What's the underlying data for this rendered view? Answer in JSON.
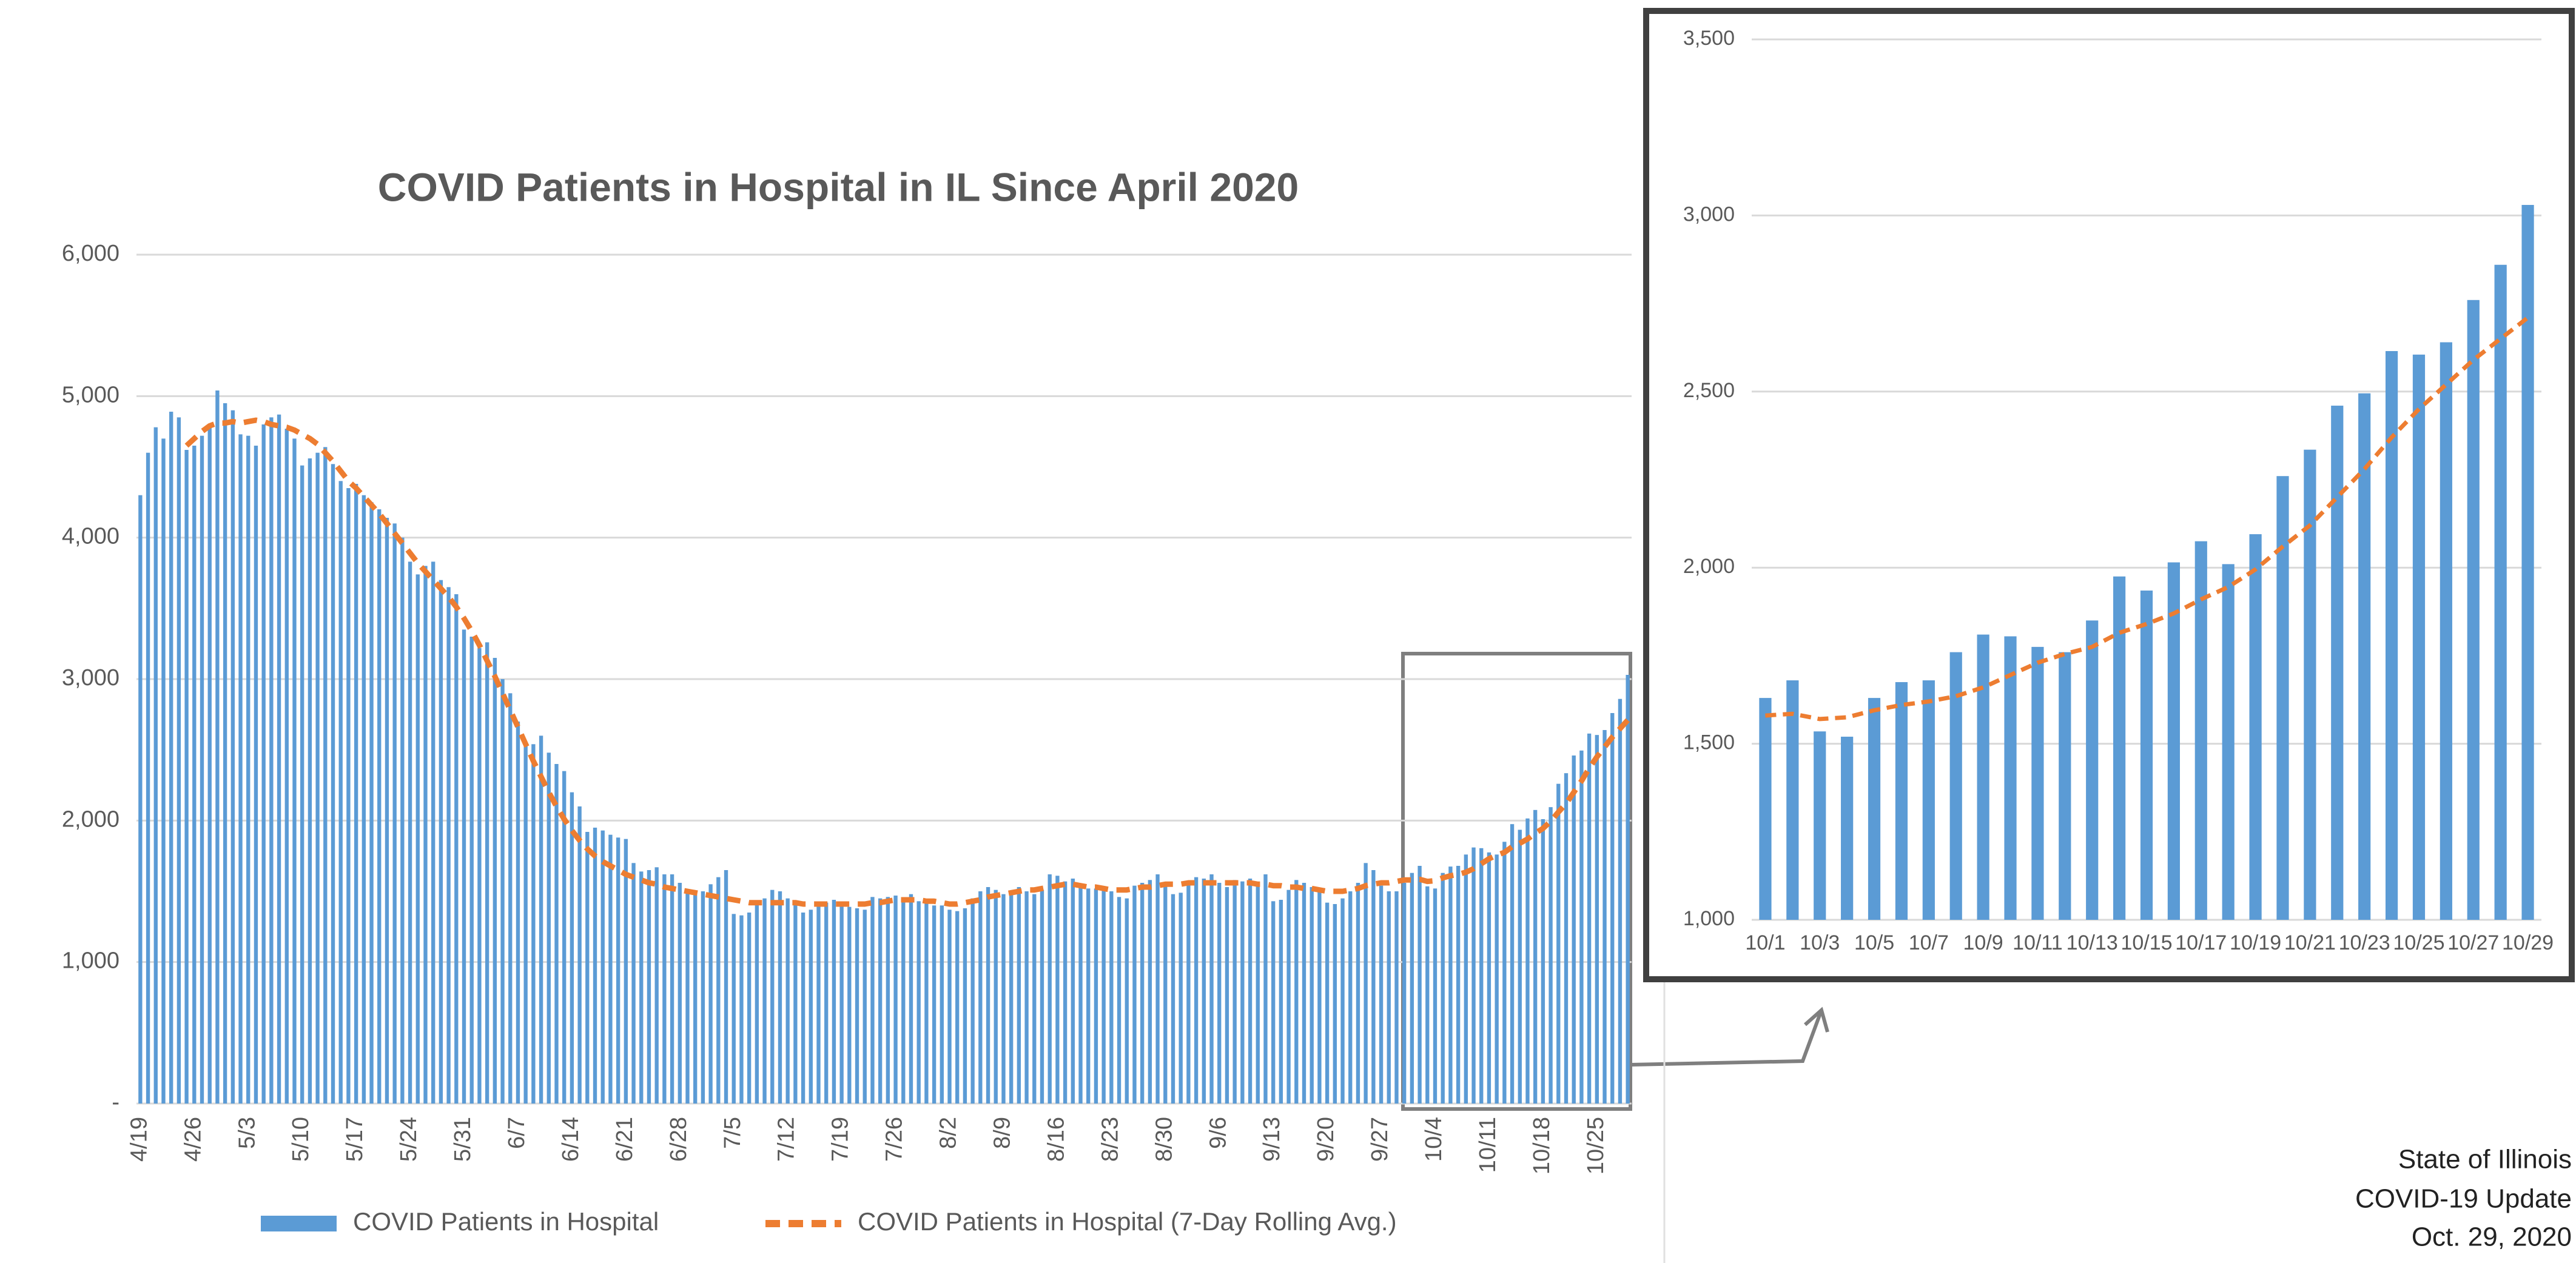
{
  "chart_data": [
    {
      "type": "bar",
      "title": "COVID Patients in Hospital in IL Since April 2020",
      "categories": [
        "4/19",
        null,
        null,
        null,
        null,
        null,
        null,
        "4/26",
        null,
        null,
        null,
        null,
        null,
        null,
        "5/3",
        null,
        null,
        null,
        null,
        null,
        null,
        "5/10",
        null,
        null,
        null,
        null,
        null,
        null,
        "5/17",
        null,
        null,
        null,
        null,
        null,
        null,
        "5/24",
        null,
        null,
        null,
        null,
        null,
        null,
        "5/31",
        null,
        null,
        null,
        null,
        null,
        null,
        "6/7",
        null,
        null,
        null,
        null,
        null,
        null,
        "6/14",
        null,
        null,
        null,
        null,
        null,
        null,
        "6/21",
        null,
        null,
        null,
        null,
        null,
        null,
        "6/28",
        null,
        null,
        null,
        null,
        null,
        null,
        "7/5",
        null,
        null,
        null,
        null,
        null,
        null,
        "7/12",
        null,
        null,
        null,
        null,
        null,
        null,
        "7/19",
        null,
        null,
        null,
        null,
        null,
        null,
        "7/26",
        null,
        null,
        null,
        null,
        null,
        null,
        "8/2",
        null,
        null,
        null,
        null,
        null,
        null,
        "8/9",
        null,
        null,
        null,
        null,
        null,
        null,
        "8/16",
        null,
        null,
        null,
        null,
        null,
        null,
        "8/23",
        null,
        null,
        null,
        null,
        null,
        null,
        "8/30",
        null,
        null,
        null,
        null,
        null,
        null,
        "9/6",
        null,
        null,
        null,
        null,
        null,
        null,
        "9/13",
        null,
        null,
        null,
        null,
        null,
        null,
        "9/20",
        null,
        null,
        null,
        null,
        null,
        null,
        "9/27",
        null,
        null,
        null,
        null,
        null,
        null,
        "10/4",
        null,
        null,
        null,
        null,
        null,
        null,
        "10/11",
        null,
        null,
        null,
        null,
        null,
        null,
        "10/18",
        null,
        null,
        null,
        null,
        null,
        null,
        "10/25",
        null,
        null,
        null,
        null
      ],
      "series": [
        {
          "name": "COVID Patients in Hospital",
          "color": "#5b9bd5",
          "type": "bar",
          "values": [
            4300,
            4600,
            4780,
            4700,
            4890,
            4850,
            4620,
            4650,
            4720,
            4800,
            5040,
            4950,
            4900,
            4730,
            4720,
            4650,
            4800,
            4850,
            4870,
            4770,
            4700,
            4510,
            4560,
            4600,
            4640,
            4520,
            4400,
            4350,
            4380,
            4300,
            4250,
            4200,
            4140,
            4100,
            4000,
            3830,
            3740,
            3800,
            3830,
            3700,
            3650,
            3600,
            3350,
            3300,
            3220,
            3260,
            3150,
            3000,
            2900,
            2700,
            2550,
            2540,
            2600,
            2480,
            2400,
            2350,
            2200,
            2100,
            1920,
            1950,
            1930,
            1900,
            1880,
            1870,
            1700,
            1640,
            1650,
            1670,
            1620,
            1620,
            1560,
            1500,
            1480,
            1500,
            1550,
            1600,
            1650,
            1340,
            1330,
            1350,
            1420,
            1450,
            1510,
            1500,
            1450,
            1420,
            1350,
            1370,
            1400,
            1420,
            1440,
            1400,
            1390,
            1380,
            1370,
            1460,
            1450,
            1460,
            1470,
            1450,
            1480,
            1430,
            1420,
            1400,
            1400,
            1370,
            1360,
            1380,
            1450,
            1500,
            1530,
            1510,
            1480,
            1490,
            1530,
            1500,
            1480,
            1510,
            1620,
            1610,
            1570,
            1590,
            1530,
            1520,
            1520,
            1510,
            1500,
            1460,
            1450,
            1540,
            1560,
            1580,
            1620,
            1550,
            1480,
            1490,
            1550,
            1600,
            1590,
            1620,
            1560,
            1530,
            1580,
            1570,
            1590,
            1560,
            1620,
            1430,
            1440,
            1510,
            1580,
            1560,
            1530,
            1520,
            1420,
            1410,
            1450,
            1500,
            1560,
            1700,
            1650,
            1540,
            1500,
            1500,
            1560,
            1630,
            1680,
            1535,
            1520,
            1630,
            1675,
            1680,
            1760,
            1810,
            1805,
            1775,
            1760,
            1850,
            1975,
            1935,
            2015,
            2075,
            2010,
            2095,
            2260,
            2335,
            2460,
            2495,
            2615,
            2605,
            2640,
            2760,
            2860,
            3030
          ]
        },
        {
          "name": "COVID Patients in Hospital (7-Day Rolling Avg.)",
          "color": "#ed7d31",
          "type": "line",
          "values": [
            null,
            null,
            null,
            null,
            null,
            null,
            4650,
            4700,
            4750,
            4790,
            4810,
            4810,
            4820,
            4810,
            4820,
            4830,
            4820,
            4800,
            4790,
            4780,
            4760,
            4730,
            4700,
            4660,
            4600,
            4540,
            4470,
            4400,
            4350,
            4290,
            4230,
            4170,
            4100,
            4030,
            3960,
            3890,
            3820,
            3760,
            3700,
            3640,
            3580,
            3510,
            3430,
            3340,
            3240,
            3130,
            3020,
            2900,
            2780,
            2660,
            2540,
            2420,
            2310,
            2200,
            2100,
            2010,
            1930,
            1860,
            1800,
            1750,
            1710,
            1680,
            1650,
            1620,
            1600,
            1580,
            1560,
            1550,
            1530,
            1520,
            1510,
            1500,
            1490,
            1480,
            1470,
            1460,
            1450,
            1440,
            1430,
            1420,
            1420,
            1420,
            1420,
            1420,
            1420,
            1420,
            1410,
            1410,
            1410,
            1410,
            1410,
            1410,
            1410,
            1410,
            1410,
            1420,
            1420,
            1430,
            1440,
            1440,
            1440,
            1440,
            1430,
            1430,
            1420,
            1410,
            1410,
            1420,
            1430,
            1440,
            1460,
            1470,
            1480,
            1490,
            1500,
            1510,
            1510,
            1520,
            1530,
            1540,
            1550,
            1550,
            1540,
            1530,
            1530,
            1520,
            1510,
            1510,
            1510,
            1520,
            1530,
            1530,
            1540,
            1550,
            1550,
            1550,
            1560,
            1560,
            1560,
            1560,
            1560,
            1560,
            1560,
            1560,
            1560,
            1550,
            1550,
            1540,
            1540,
            1530,
            1530,
            1520,
            1520,
            1510,
            1500,
            1500,
            1500,
            1510,
            1520,
            1540,
            1550,
            1560,
            1560,
            1570,
            1580,
            1580,
            1585,
            1570,
            1575,
            1595,
            1610,
            1620,
            1635,
            1660,
            1695,
            1730,
            1755,
            1775,
            1815,
            1840,
            1870,
            1910,
            1945,
            1995,
            2060,
            2120,
            2200,
            2280,
            2370,
            2450,
            2520,
            2590,
            2650,
            2710
          ]
        }
      ],
      "ylim": [
        0,
        6000
      ],
      "yticks": [
        {
          "value": 0,
          "label": "-"
        },
        {
          "value": 1000,
          "label": "1,000"
        },
        {
          "value": 2000,
          "label": "2,000"
        },
        {
          "value": 3000,
          "label": "3,000"
        },
        {
          "value": 4000,
          "label": "4,000"
        },
        {
          "value": 5000,
          "label": "5,000"
        },
        {
          "value": 6000,
          "label": "6,000"
        }
      ],
      "grid": true,
      "legend": "bottom",
      "x_label_rotation": -90
    },
    {
      "type": "bar",
      "categories": [
        "10/1",
        null,
        "10/3",
        null,
        "10/5",
        null,
        "10/7",
        null,
        "10/9",
        null,
        "10/11",
        null,
        "10/13",
        null,
        "10/15",
        null,
        "10/17",
        null,
        "10/19",
        null,
        "10/21",
        null,
        "10/23",
        null,
        "10/25",
        null,
        "10/27",
        null,
        "10/29"
      ],
      "series": [
        {
          "color": "#5b9bd5",
          "type": "bar",
          "values": [
            1630,
            1680,
            1535,
            1520,
            1630,
            1675,
            1680,
            1760,
            1810,
            1805,
            1775,
            1760,
            1850,
            1975,
            1935,
            2015,
            2075,
            2010,
            2095,
            2260,
            2335,
            2460,
            2495,
            2615,
            2605,
            2640,
            2760,
            2860,
            3030
          ]
        },
        {
          "color": "#ed7d31",
          "type": "line",
          "values": [
            1580,
            1585,
            1570,
            1575,
            1595,
            1610,
            1620,
            1635,
            1660,
            1695,
            1730,
            1755,
            1775,
            1815,
            1840,
            1870,
            1910,
            1945,
            1995,
            2060,
            2120,
            2200,
            2280,
            2370,
            2450,
            2520,
            2590,
            2650,
            2710
          ]
        }
      ],
      "ylim": [
        1000,
        3500
      ],
      "yticks": [
        {
          "value": 1000,
          "label": "1,000"
        },
        {
          "value": 1500,
          "label": "1,500"
        },
        {
          "value": 2000,
          "label": "2,000"
        },
        {
          "value": 2500,
          "label": "2,500"
        },
        {
          "value": 3000,
          "label": "3,000"
        },
        {
          "value": 3500,
          "label": "3,500"
        }
      ],
      "grid": true,
      "legend": false,
      "x_label_rotation": 0
    }
  ],
  "footer": [
    "State of Illinois",
    "COVID-19 Update",
    "Oct. 29, 2020"
  ]
}
